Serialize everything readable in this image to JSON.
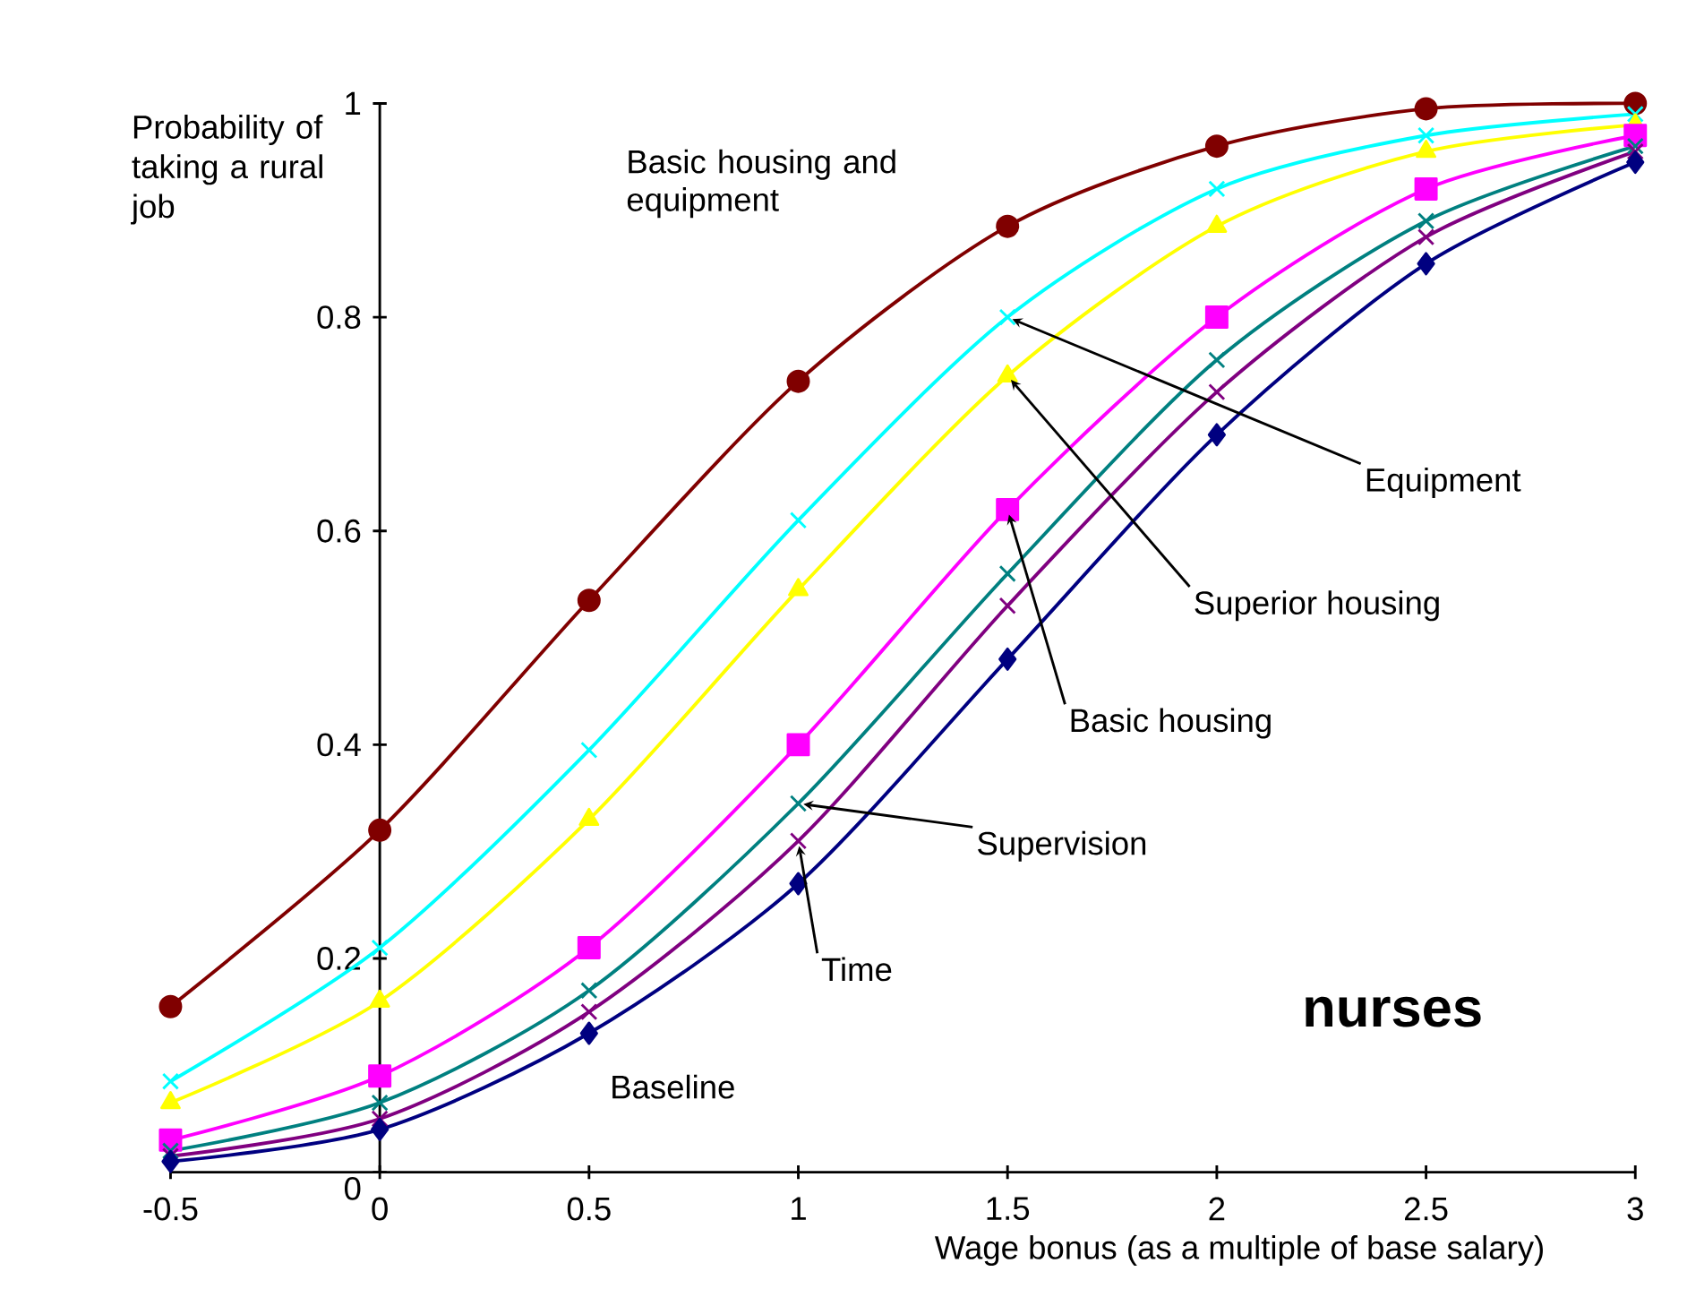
{
  "chart_data": {
    "type": "line",
    "xlabel": "Wage bonus (as a multiple of base salary)",
    "ylabel": "Probability of taking a rural job",
    "x": [
      -0.5,
      0,
      0.5,
      1,
      1.5,
      2,
      2.5,
      3
    ],
    "xlim": [
      -0.5,
      3
    ],
    "ylim": [
      0,
      1
    ],
    "xticks": [
      -0.5,
      0,
      0.5,
      1,
      1.5,
      2,
      2.5,
      3
    ],
    "yticks": [
      0,
      0.2,
      0.4,
      0.6,
      0.8,
      1
    ],
    "grid": false,
    "line_style": "solid",
    "annotations": [
      "nurses"
    ],
    "series": [
      {
        "name": "Basic housing and equipment",
        "color": "#800000",
        "marker": "circle",
        "values": [
          0.155,
          0.32,
          0.535,
          0.74,
          0.885,
          0.96,
          0.995,
          1.0
        ]
      },
      {
        "name": "Equipment",
        "color": "#00ffff",
        "marker": "cross",
        "values": [
          0.085,
          0.21,
          0.395,
          0.61,
          0.8,
          0.92,
          0.97,
          0.99
        ]
      },
      {
        "name": "Superior housing",
        "color": "#ffff00",
        "marker": "triangle",
        "values": [
          0.065,
          0.16,
          0.33,
          0.545,
          0.745,
          0.885,
          0.955,
          0.98
        ]
      },
      {
        "name": "Basic housing",
        "color": "#ff00ff",
        "marker": "square",
        "values": [
          0.03,
          0.09,
          0.21,
          0.4,
          0.62,
          0.8,
          0.92,
          0.97
        ]
      },
      {
        "name": "Supervision",
        "color": "#008080",
        "marker": "cross",
        "values": [
          0.02,
          0.065,
          0.17,
          0.345,
          0.56,
          0.76,
          0.89,
          0.96
        ]
      },
      {
        "name": "Time",
        "color": "#800080",
        "marker": "cross",
        "values": [
          0.015,
          0.05,
          0.15,
          0.31,
          0.53,
          0.73,
          0.875,
          0.955
        ]
      },
      {
        "name": "Baseline",
        "color": "#000080",
        "marker": "diamond",
        "values": [
          0.01,
          0.04,
          0.13,
          0.27,
          0.48,
          0.69,
          0.85,
          0.945
        ]
      }
    ]
  }
}
